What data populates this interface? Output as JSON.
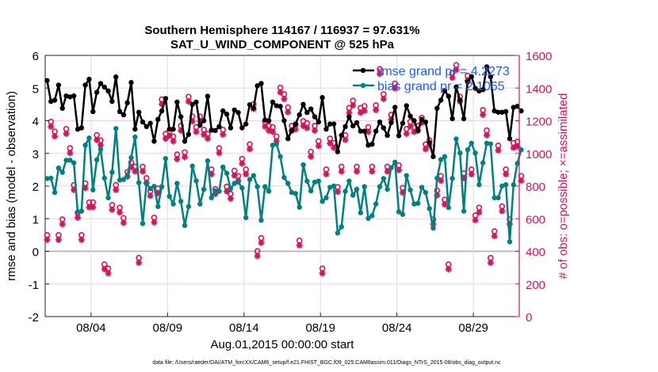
{
  "chart_data": {
    "type": "line",
    "title": "Southern Hemisphere 114167 / 116937 = 97.631%",
    "subtitle": "SAT_U_WIND_COMPONENT @ 525 hPa",
    "xlabel": "Aug.01,2015 00:00:00 start",
    "ylabel": "rmse and bias (model - observation)",
    "ylabel_right": "# of obs: o=possible; ×=assimilated",
    "footer": "data file: /Users/raeder/DAI/ATM_forcXX/CAM6_setup/f.e21.FHIST_BGC.f09_025.CAM6assim.011/Diags_NTrS_2015-08/obs_diag_output.nc",
    "xlim_days": [
      0,
      31
    ],
    "ylim": [
      -2,
      6
    ],
    "ylim_right": [
      0,
      1600
    ],
    "x_ticks": [
      {
        "day": 3,
        "label": "08/04"
      },
      {
        "day": 8,
        "label": "08/09"
      },
      {
        "day": 13,
        "label": "08/14"
      },
      {
        "day": 18,
        "label": "08/19"
      },
      {
        "day": 23,
        "label": "08/24"
      },
      {
        "day": 28,
        "label": "08/29"
      }
    ],
    "y_ticks": [
      "-2",
      "-1",
      "0",
      "1",
      "2",
      "3",
      "4",
      "5",
      "6"
    ],
    "y_ticks_right": [
      "0",
      "200",
      "400",
      "600",
      "800",
      "1000",
      "1200",
      "1400",
      "1600"
    ],
    "time_step_hours": 6,
    "first_sample_day": 0.125,
    "legend_position": "top-right",
    "grid": true,
    "colors": {
      "rmse": "#000000",
      "bias": "#008080",
      "obs": "#d4145a",
      "legend_text": "#1a5cff",
      "grid_right": "#f6cfdc",
      "grid_x": "#dddddd"
    },
    "series": [
      {
        "name": "rmse",
        "legend": "rmse grand pr = 4.2273",
        "values": [
          5.23,
          4.59,
          4.63,
          5.09,
          4.38,
          4.76,
          4.73,
          4.76,
          3.74,
          3.78,
          5.09,
          5.27,
          4.28,
          4.87,
          5.14,
          5.03,
          4.91,
          4.59,
          5.34,
          4.28,
          4.18,
          4.55,
          5.17,
          3.74,
          4.26,
          3.96,
          3.82,
          3.92,
          3.37,
          4.04,
          4.3,
          4.68,
          3.74,
          3.74,
          4.57,
          4.12,
          3.37,
          3.58,
          4.5,
          4.57,
          3.86,
          4.0,
          4.75,
          3.71,
          3.7,
          3.82,
          4.3,
          4.2,
          3.78,
          4.33,
          4.25,
          3.78,
          3.9,
          4.49,
          4.38,
          5.07,
          5.14,
          4.02,
          4.0,
          4.57,
          4.46,
          4.44,
          4.0,
          3.45,
          3.7,
          3.9,
          4.18,
          4.5,
          4.25,
          4.36,
          4.12,
          3.96,
          4.71,
          3.74,
          3.9,
          3.9,
          3.05,
          3.55,
          3.82,
          4.12,
          3.84,
          3.94,
          3.68,
          3.68,
          3.25,
          3.28,
          3.68,
          3.96,
          3.78,
          3.55,
          3.94,
          4.41,
          3.54,
          3.92,
          4.46,
          4.14,
          4.0,
          3.7,
          4.04,
          3.96,
          3.33,
          2.9,
          4.38,
          4.63,
          4.92,
          4.75,
          4.06,
          5.03,
          4.63,
          4.06,
          5.19,
          5.35,
          4.99,
          4.91,
          4.95,
          5.65,
          5.35,
          4.3,
          4.26,
          4.26,
          4.28,
          3.45,
          4.41,
          4.44,
          4.3
        ]
      },
      {
        "name": "bias",
        "legend": "bias grand pr = 2.1065",
        "values": [
          2.23,
          2.24,
          1.8,
          2.55,
          2.42,
          2.79,
          2.79,
          2.71,
          1.21,
          1.23,
          3.25,
          3.47,
          1.88,
          2.8,
          3.12,
          2.24,
          1.64,
          2.42,
          3.76,
          2.18,
          2.2,
          2.32,
          2.87,
          3.5,
          2.1,
          0.85,
          2.08,
          1.92,
          1.99,
          1.37,
          1.98,
          2.84,
          1.68,
          1.45,
          2.08,
          1.53,
          0.79,
          1.37,
          2.61,
          2.16,
          1.45,
          1.9,
          2.77,
          1.64,
          1.85,
          1.84,
          2.58,
          2.39,
          1.92,
          2.08,
          2.12,
          1.94,
          1.03,
          2.2,
          2.32,
          1.98,
          0.95,
          1.98,
          1.84,
          3.25,
          3.29,
          2.9,
          2.26,
          2.08,
          1.8,
          1.77,
          1.35,
          2.65,
          2.15,
          1.85,
          2.12,
          2.15,
          1.53,
          1.64,
          1.96,
          2.0,
          0.56,
          0.75,
          1.84,
          2.15,
          1.72,
          1.9,
          1.18,
          1.98,
          1.01,
          1.09,
          1.45,
          1.98,
          2.23,
          1.9,
          2.56,
          2.73,
          1.21,
          1.13,
          2.32,
          1.88,
          1.45,
          1.47,
          1.96,
          1.8,
          1.31,
          0.71,
          2.24,
          2.81,
          2.9,
          1.34,
          2.23,
          3.44,
          3.01,
          1.23,
          3.11,
          3.31,
          3.01,
          2.04,
          2.71,
          3.31,
          3.29,
          1.64,
          1.64,
          2.0,
          2.04,
          0.29,
          2.04,
          2.69,
          3.11
        ]
      },
      {
        "name": "obs_assimilated",
        "axis": "right",
        "values": [
          470,
          1164,
          1104,
          470,
          566,
          1120,
          1002,
          776,
          606,
          470,
          787,
          670,
          670,
          1082,
          1050,
          290,
          265,
          654,
          776,
          638,
          574,
          857,
          914,
          889,
          330,
          889,
          819,
          739,
          577,
          755,
          1301,
          1090,
          1107,
          1074,
          964,
          1139,
          977,
          1317,
          1196,
          1131,
          1196,
          1115,
          1090,
          872,
          751,
          1002,
          1115,
          767,
          722,
          864,
          832,
          937,
          872,
          1026,
          1272,
          371,
          452,
          1164,
          1139,
          1131,
          1074,
          1373,
          1333,
          1252,
          1139,
          1147,
          436,
          1168,
          1155,
          980,
          1139,
          1045,
          265,
          872,
          1061,
          1034,
          764,
          889,
          1082,
          1249,
          1293,
          889,
          1249,
          1260,
          1131,
          889,
          1265,
          1487,
          1333,
          889,
          1207,
          1398,
          897,
          759,
          1120,
          1164,
          1131,
          1139,
          1188,
          1026,
          1050,
          566,
          743,
          832,
          687,
          290,
          1463,
          1511,
          1317,
          848,
          1446,
          872,
          590,
          638,
          1236,
          1111,
          330,
          493,
          1018,
          646,
          872,
          566,
          1034,
          1042,
          832
        ]
      },
      {
        "name": "obs_possible",
        "axis": "right",
        "offset_from_assimilated": 20
      }
    ]
  }
}
